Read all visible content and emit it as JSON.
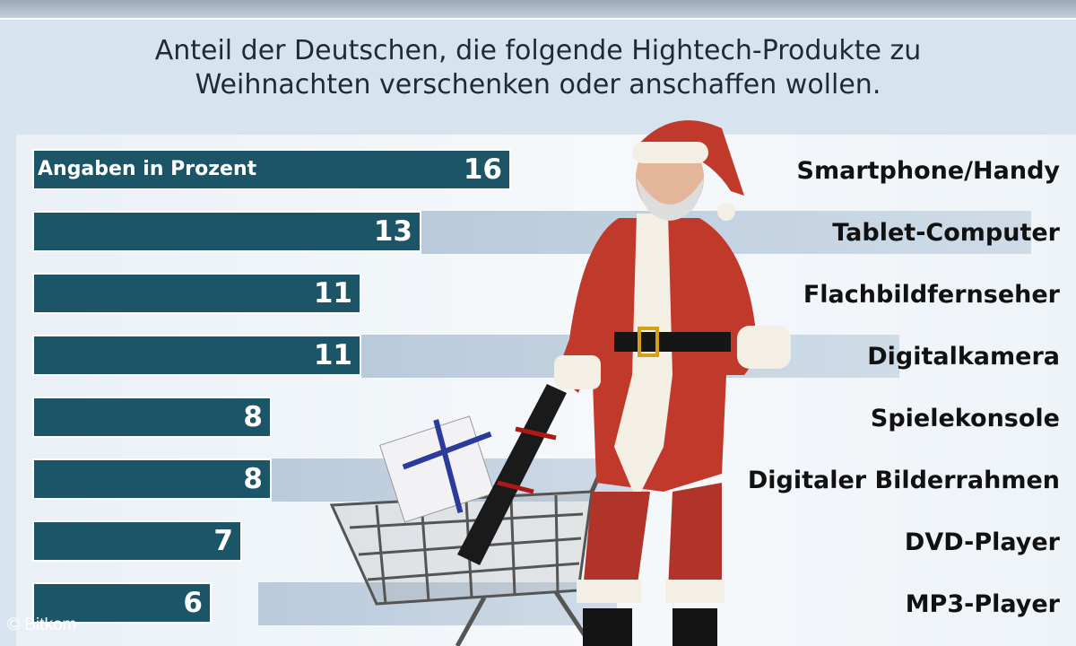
{
  "subtitle": "Anteil der Deutschen, die folgende Hightech-Produkte zu Weihnachten verschenken oder anschaffen wollen.",
  "credit": "© Bitkom",
  "colors": {
    "bar": "#1d5568",
    "background": "#d7e3ee"
  },
  "chart_data": {
    "type": "bar",
    "orientation": "horizontal",
    "unit_label": "Angaben in Prozent",
    "categories": [
      "Smartphone/Handy",
      "Tablet-Computer",
      "Flachbildfernseher",
      "Digitalkamera",
      "Spielekonsole",
      "Digitaler Bilderrahmen",
      "DVD-Player",
      "MP3-Player"
    ],
    "values": [
      16,
      13,
      11,
      11,
      8,
      8,
      7,
      6
    ],
    "xlim": [
      0,
      16
    ],
    "grid": false,
    "legend": "none"
  }
}
